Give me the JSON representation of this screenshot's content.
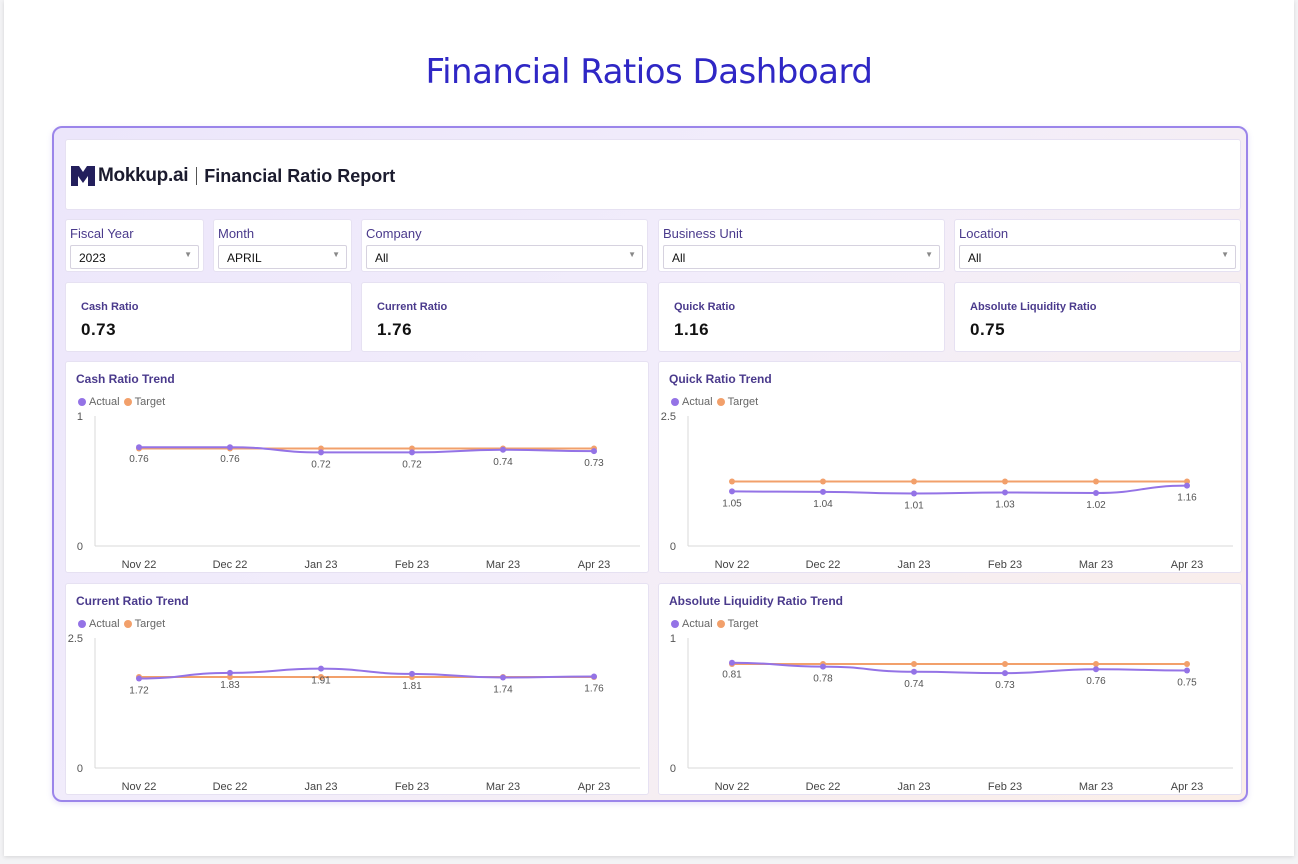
{
  "page_title": "Financial Ratios Dashboard",
  "header": {
    "brand": "Mokkup.ai",
    "report_title": "Financial Ratio Report"
  },
  "filters": [
    {
      "label": "Fiscal Year",
      "value": "2023"
    },
    {
      "label": "Month",
      "value": "APRIL"
    },
    {
      "label": "Company",
      "value": "All"
    },
    {
      "label": "Business Unit",
      "value": "All"
    },
    {
      "label": "Location",
      "value": "All"
    }
  ],
  "kpis": [
    {
      "label": "Cash Ratio",
      "value": "0.73"
    },
    {
      "label": "Current Ratio",
      "value": "1.76"
    },
    {
      "label": "Quick Ratio",
      "value": "1.16"
    },
    {
      "label": "Absolute Liquidity Ratio",
      "value": "0.75"
    }
  ],
  "legend": {
    "actual": "Actual",
    "target": "Target"
  },
  "colors": {
    "actual": "#9473e6",
    "target": "#f2a06b",
    "brand": "#2f27c5",
    "label": "#4a3a8c"
  },
  "chart_data": [
    {
      "type": "line",
      "title": "Cash Ratio Trend",
      "categories": [
        "Nov 22",
        "Dec 22",
        "Jan 23",
        "Feb 23",
        "Mar 23",
        "Apr 23"
      ],
      "ylim": [
        0,
        1
      ],
      "yticks": [
        "0",
        "1"
      ],
      "series": [
        {
          "name": "Actual",
          "values": [
            0.76,
            0.76,
            0.72,
            0.72,
            0.74,
            0.73
          ],
          "labels": [
            "0.76",
            "0.76",
            "0.72",
            "0.72",
            "0.74",
            "0.73"
          ]
        },
        {
          "name": "Target",
          "values": [
            0.75,
            0.75,
            0.75,
            0.75,
            0.75,
            0.75
          ]
        }
      ]
    },
    {
      "type": "line",
      "title": "Quick Ratio Trend",
      "categories": [
        "Nov 22",
        "Dec 22",
        "Jan 23",
        "Feb 23",
        "Mar 23",
        "Apr 23"
      ],
      "ylim": [
        0,
        2.5
      ],
      "yticks": [
        "0",
        "2.5"
      ],
      "series": [
        {
          "name": "Actual",
          "values": [
            1.05,
            1.04,
            1.01,
            1.03,
            1.02,
            1.16
          ],
          "labels": [
            "1.05",
            "1.04",
            "1.01",
            "1.03",
            "1.02",
            "1.16"
          ]
        },
        {
          "name": "Target",
          "values": [
            1.24,
            1.24,
            1.24,
            1.24,
            1.24,
            1.24
          ]
        }
      ]
    },
    {
      "type": "line",
      "title": "Current Ratio Trend",
      "categories": [
        "Nov 22",
        "Dec 22",
        "Jan 23",
        "Feb 23",
        "Mar 23",
        "Apr 23"
      ],
      "ylim": [
        0,
        2.5
      ],
      "yticks": [
        "0",
        "2.5"
      ],
      "series": [
        {
          "name": "Actual",
          "values": [
            1.72,
            1.83,
            1.91,
            1.81,
            1.74,
            1.76
          ],
          "labels": [
            "1.72",
            "1.83",
            "1.91",
            "1.81",
            "1.74",
            "1.76"
          ]
        },
        {
          "name": "Target",
          "values": [
            1.75,
            1.75,
            1.75,
            1.75,
            1.75,
            1.75
          ]
        }
      ]
    },
    {
      "type": "line",
      "title": "Absolute Liquidity Ratio Trend",
      "categories": [
        "Nov 22",
        "Dec 22",
        "Jan 23",
        "Feb 23",
        "Mar 23",
        "Apr 23"
      ],
      "ylim": [
        0,
        1
      ],
      "yticks": [
        "0",
        "1"
      ],
      "series": [
        {
          "name": "Actual",
          "values": [
            0.81,
            0.78,
            0.74,
            0.73,
            0.76,
            0.75
          ],
          "labels": [
            "0.81",
            "0.78",
            "0.74",
            "0.73",
            "0.76",
            "0.75"
          ]
        },
        {
          "name": "Target",
          "values": [
            0.8,
            0.8,
            0.8,
            0.8,
            0.8,
            0.8
          ]
        }
      ]
    }
  ]
}
